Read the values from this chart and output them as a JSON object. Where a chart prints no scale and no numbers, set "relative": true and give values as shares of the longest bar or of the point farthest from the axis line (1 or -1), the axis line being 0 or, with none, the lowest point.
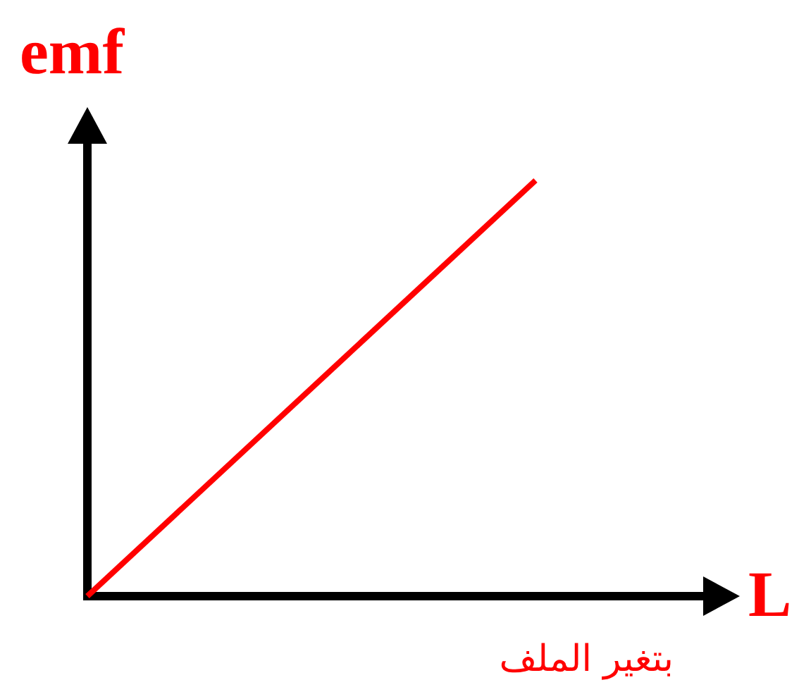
{
  "chart_data": {
    "type": "line",
    "relative": true,
    "categories": [
      null,
      null
    ],
    "series": [
      {
        "color": "#ff0000",
        "values": [
          0,
          1
        ]
      }
    ],
    "xlabel": "L",
    "ylabel": "emf",
    "annotations": [
      "بتغير الملف"
    ],
    "line_style": "solid"
  }
}
